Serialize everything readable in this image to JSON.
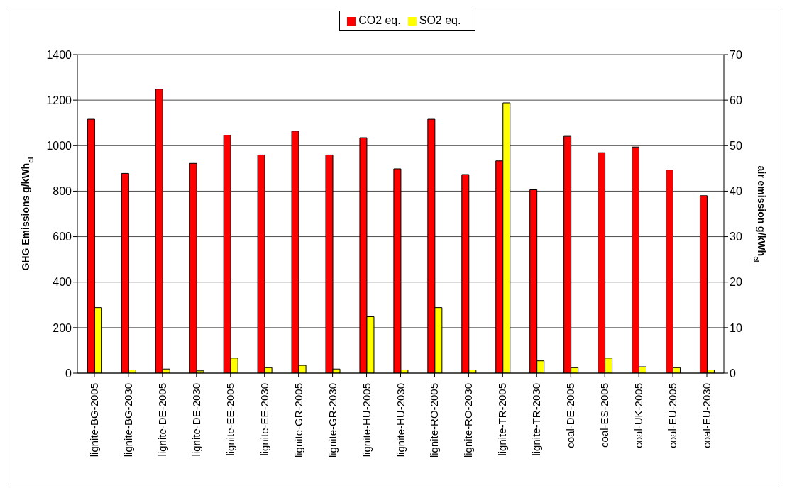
{
  "chart_data": {
    "type": "bar",
    "categories": [
      "lignite-BG-2005",
      "lignite-BG-2030",
      "lignite-DE-2005",
      "lignite-DE-2030",
      "lignite-EE-2005",
      "lignite-EE-2030",
      "lignite-GR-2005",
      "lignite-GR-2030",
      "lignite-HU-2005",
      "lignite-HU-2030",
      "lignite-RO-2005",
      "lignite-RO-2030",
      "lignite-TR-2005",
      "lignite-TR-2030",
      "coal-DE-2005",
      "coal-ES-2005",
      "coal-UK-2005",
      "coal-EU-2005",
      "coal-EU-2030"
    ],
    "series": [
      {
        "name": "CO2 eq.",
        "color": "#ff0000",
        "values": [
          1116,
          878,
          1248,
          922,
          1046,
          959,
          1064,
          959,
          1035,
          898,
          1116,
          873,
          933,
          806,
          1041,
          969,
          994,
          893,
          780
        ]
      },
      {
        "name": "SO2 eq.",
        "color": "#ffff00",
        "axis": "y2",
        "values": [
          14.4,
          0.7,
          0.9,
          0.5,
          3.3,
          1.2,
          1.7,
          0.9,
          12.4,
          0.7,
          14.4,
          0.7,
          59.4,
          2.7,
          1.2,
          3.3,
          1.4,
          1.2,
          0.7
        ]
      }
    ],
    "ylabel": "GHG Emissions g/kWh$_{el}$",
    "y2label": "air emission  g/kWh$_{el}$",
    "ylim": [
      0,
      1400
    ],
    "yticks": [
      0,
      200,
      400,
      600,
      800,
      1000,
      1200,
      1400
    ],
    "y2lim": [
      0,
      70
    ],
    "y2ticks": [
      0,
      10,
      20,
      30,
      40,
      50,
      60,
      70
    ],
    "grid": "y",
    "legend": "top"
  }
}
